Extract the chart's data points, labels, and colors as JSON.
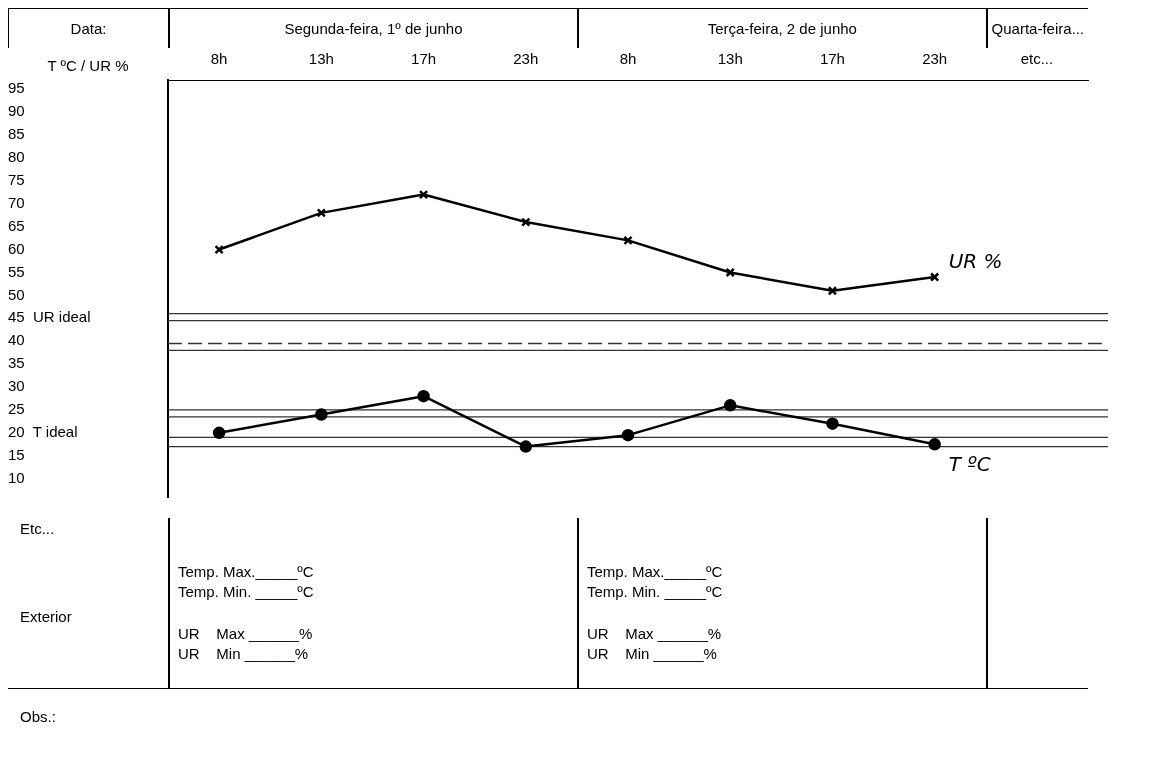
{
  "chart_data": {
    "type": "line",
    "ylabel": "T ºC / UR %",
    "categories": [
      "8h",
      "13h",
      "17h",
      "23h",
      "8h",
      "13h",
      "17h",
      "23h",
      "etc..."
    ],
    "series": [
      {
        "name": "UR %",
        "color": "#000000",
        "marker": "cross",
        "values": [
          60,
          68,
          72,
          66,
          62,
          55,
          51,
          54,
          null
        ]
      },
      {
        "name": "T ºC",
        "color": "#000000",
        "marker": "circle",
        "values": [
          20,
          24,
          28,
          17,
          19.5,
          26,
          22,
          17.5,
          null
        ]
      }
    ],
    "ylim": [
      6,
      97
    ],
    "yticks": [
      10,
      15,
      {
        "value": 20,
        "label": "20  T ideal"
      },
      25,
      30,
      35,
      40,
      {
        "value": 45,
        "label": "45  UR ideal"
      },
      50,
      55,
      60,
      65,
      70,
      75,
      80,
      85,
      90,
      95
    ],
    "ref_lines": [
      {
        "axis": "y",
        "value": 46,
        "color": "#333333"
      },
      {
        "axis": "y",
        "value": 44.5,
        "color": "#333333"
      },
      {
        "axis": "y",
        "value": 39.5,
        "color": "#333333",
        "line_style": "dashed"
      },
      {
        "axis": "y",
        "value": 38,
        "color": "#333333"
      },
      {
        "axis": "y",
        "value": 25,
        "color": "#333333"
      },
      {
        "axis": "y",
        "value": 23.5,
        "color": "#333333"
      },
      {
        "axis": "y",
        "value": 19,
        "color": "#333333"
      },
      {
        "axis": "y",
        "value": 17,
        "color": "#333333"
      }
    ],
    "annotations": [
      "Data:",
      "Segunda-feira, 1º de junho",
      "Terça-feira, 2 de junho",
      "Quarta-feira...",
      "Etc...",
      "Exterior",
      "Temp. Max._____ºC",
      "Temp. Min. _____ºC",
      "UR    Max ______%",
      "UR    Min ______%",
      "Temp. Max._____ºC",
      "Temp. Min. _____ºC",
      "UR    Max ______%",
      "UR    Min ______%",
      "Obs.:"
    ]
  }
}
